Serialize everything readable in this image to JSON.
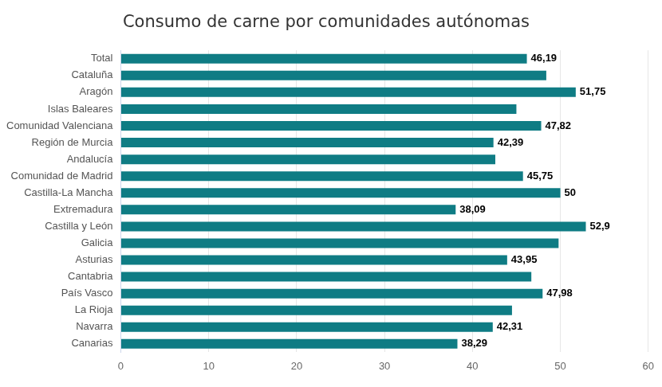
{
  "chart_data": {
    "type": "bar",
    "orientation": "horizontal",
    "title": "Consumo de carne por comunidades autónomas",
    "categories": [
      "Total",
      "Cataluña",
      "Aragón",
      "Islas Baleares",
      "Comunidad Valenciana",
      "Región de Murcia",
      "Andalucía",
      "Comunidad de Madrid",
      "Castilla-La Mancha",
      "Extremadura",
      "Castilla y León",
      "Galicia",
      "Asturias",
      "Cantabria",
      "País Vasco",
      "La Rioja",
      "Navarra",
      "Canarias"
    ],
    "values": [
      46.19,
      48.4,
      51.75,
      45.0,
      47.82,
      42.39,
      42.6,
      45.75,
      50,
      38.09,
      52.9,
      49.8,
      43.95,
      46.7,
      47.98,
      44.5,
      42.31,
      38.29
    ],
    "value_labels": [
      "46,19",
      null,
      "51,75",
      null,
      "47,82",
      "42,39",
      null,
      "45,75",
      "50",
      "38,09",
      "52,9",
      null,
      "43,95",
      null,
      "47,98",
      null,
      "42,31",
      "38,29"
    ],
    "data_labels": true,
    "color": "#0f7c84",
    "xlim": [
      0,
      60
    ],
    "xticks": [
      0,
      10,
      20,
      30,
      40,
      50,
      60
    ],
    "grid": true
  }
}
